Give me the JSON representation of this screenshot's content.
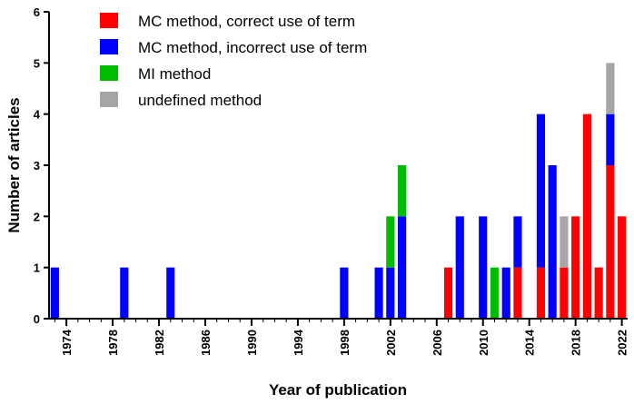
{
  "chart_data": {
    "type": "bar",
    "stacked": true,
    "title": "",
    "xlabel": "Year of publication",
    "ylabel": "Number of articles",
    "xlim": [
      1972.5,
      2022.5
    ],
    "ylim": [
      0,
      6
    ],
    "yticks": [
      0,
      1,
      2,
      3,
      4,
      5,
      6
    ],
    "xticks": [
      1974,
      1978,
      1982,
      1986,
      1990,
      1994,
      1998,
      2002,
      2006,
      2010,
      2014,
      2018,
      2022
    ],
    "legend_position": "top-left",
    "series": [
      {
        "name": "MC method, correct use of term",
        "color": "#ff0000",
        "points": [
          [
            2007,
            1
          ],
          [
            2013,
            1
          ],
          [
            2015,
            1
          ],
          [
            2017,
            1
          ],
          [
            2018,
            2
          ],
          [
            2019,
            4
          ],
          [
            2020,
            1
          ],
          [
            2021,
            3
          ],
          [
            2022,
            2
          ]
        ]
      },
      {
        "name": "MC method, incorrect use of term",
        "color": "#0000ff",
        "points": [
          [
            1973,
            1
          ],
          [
            1979,
            1
          ],
          [
            1983,
            1
          ],
          [
            1998,
            1
          ],
          [
            2001,
            1
          ],
          [
            2002,
            1
          ],
          [
            2003,
            2
          ],
          [
            2008,
            2
          ],
          [
            2010,
            2
          ],
          [
            2012,
            1
          ],
          [
            2013,
            1
          ],
          [
            2015,
            3
          ],
          [
            2016,
            3
          ],
          [
            2021,
            1
          ]
        ]
      },
      {
        "name": "MI method",
        "color": "#00bb00",
        "points": [
          [
            2002,
            1
          ],
          [
            2003,
            1
          ],
          [
            2011,
            1
          ]
        ]
      },
      {
        "name": "undefined method",
        "color": "#a6a6a6",
        "points": [
          [
            2017,
            1
          ],
          [
            2021,
            1
          ]
        ]
      }
    ]
  }
}
